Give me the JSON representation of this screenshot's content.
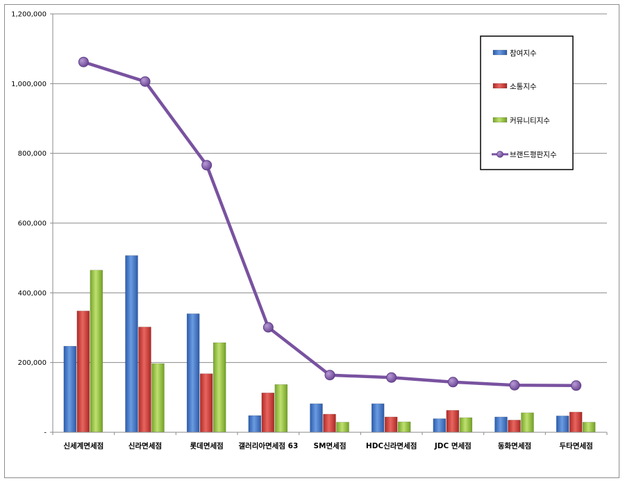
{
  "chart_data": {
    "type": "bar",
    "title": "",
    "xlabel": "",
    "ylabel": "",
    "ylim": [
      0,
      1200000
    ],
    "yticks": [
      0,
      200000,
      400000,
      600000,
      800000,
      1000000,
      1200000
    ],
    "ytick_labels": [
      "-",
      "200,000",
      "400,000",
      "600,000",
      "800,000",
      "1,000,000",
      "1,200,000"
    ],
    "grid": true,
    "legend_position": "top-right",
    "categories": [
      "신세계면세점",
      "신라면세점",
      "롯데면세점",
      "갤러리아면세점 63",
      "SM면세점",
      "HDC신라면세점",
      "JDC 면세점",
      "동화면세점",
      "두타면세점"
    ],
    "series": [
      {
        "name": "참여지수",
        "kind": "bar",
        "color": "#3f74c8",
        "values": [
          247000,
          507000,
          340000,
          48000,
          82000,
          82000,
          39000,
          44000,
          47000
        ]
      },
      {
        "name": "소통지수",
        "kind": "bar",
        "color": "#cc3a36",
        "values": [
          348000,
          302000,
          168000,
          113000,
          52000,
          44000,
          63000,
          35000,
          58000
        ]
      },
      {
        "name": "커뮤니티지수",
        "kind": "bar",
        "color": "#8fbe35",
        "values": [
          465000,
          197000,
          257000,
          137000,
          29000,
          30000,
          42000,
          56000,
          29000
        ]
      },
      {
        "name": "브랜드평판지수",
        "kind": "line",
        "color": "#7952a0",
        "values": [
          1062000,
          1006000,
          766000,
          301000,
          164000,
          157000,
          144000,
          135000,
          134000
        ]
      }
    ]
  }
}
